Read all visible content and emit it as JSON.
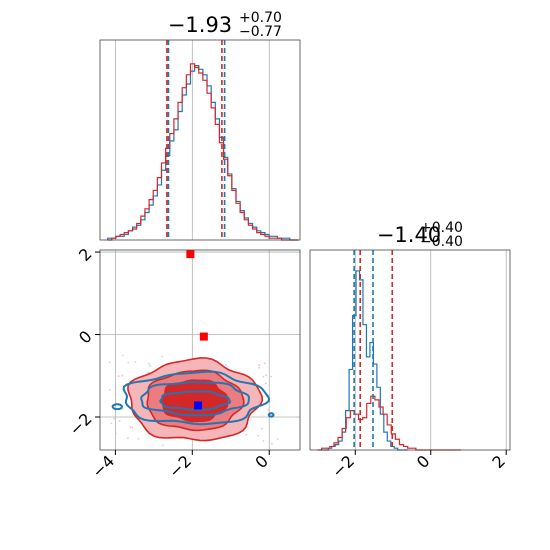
{
  "chart_data": [
    {
      "type": "histogram",
      "panel": "marginal-x",
      "title": {
        "main": "−1.93",
        "sup": "+0.70",
        "sub": "−0.77"
      },
      "xlim": [
        -4.4,
        0.8
      ],
      "colors": {
        "blue": "#1f77b4",
        "red": "#d62728"
      },
      "quantile_lines": {
        "blue": [
          -2.62,
          -1.93,
          -1.16
        ],
        "red": [
          -2.66,
          -1.93,
          -1.23
        ]
      },
      "series": [
        {
          "name": "",
          "color": "blue",
          "values": [
            1,
            1,
            2,
            2,
            3,
            5,
            7,
            8,
            11,
            15,
            19,
            24,
            30,
            38,
            46,
            54,
            60,
            70,
            79,
            85,
            92,
            95,
            93,
            90,
            84,
            75,
            66,
            56,
            45,
            36,
            28,
            21,
            16,
            12,
            9,
            7,
            5,
            4,
            3,
            2,
            2,
            1,
            1,
            1,
            0,
            0
          ]
        },
        {
          "name": "",
          "color": "red",
          "values": [
            0,
            1,
            2,
            3,
            4,
            5,
            6,
            9,
            13,
            17,
            22,
            27,
            34,
            42,
            50,
            58,
            66,
            75,
            83,
            90,
            96,
            94,
            91,
            87,
            80,
            72,
            63,
            53,
            44,
            35,
            27,
            20,
            15,
            11,
            8,
            6,
            4,
            3,
            2,
            1,
            1,
            1,
            0,
            0,
            0,
            0
          ]
        }
      ]
    },
    {
      "type": "histogram",
      "panel": "marginal-y",
      "title": {
        "main": "−1.40",
        "sup": "+0.40",
        "sub": "−0.40"
      },
      "xlim": [
        -3.2,
        2.1
      ],
      "xticks": [
        -2,
        0,
        2
      ],
      "tick_labels": [
        "−2",
        "0",
        "2"
      ],
      "quantile_lines": {
        "blue": [
          -2.03,
          -1.53,
          -1.17
        ],
        "red": [
          -1.87,
          -1.02,
          -1.5
        ]
      },
      "series": [
        {
          "name": "",
          "color": "blue",
          "values": [
            0,
            0,
            1,
            2,
            3,
            5,
            10,
            22,
            45,
            75,
            100,
            95,
            70,
            52,
            60,
            48,
            35,
            20,
            10,
            5,
            2,
            1,
            0,
            0,
            0
          ]
        },
        {
          "name": "",
          "color": "red",
          "values": [
            0,
            1,
            1,
            2,
            4,
            7,
            12,
            18,
            22,
            20,
            17,
            18,
            26,
            30,
            28,
            24,
            20,
            14,
            9,
            6,
            3,
            2,
            1,
            1,
            0,
            0,
            0,
            0,
            0,
            0,
            0,
            0,
            0,
            0,
            0
          ]
        }
      ]
    },
    {
      "type": "contour",
      "panel": "joint",
      "xlim": [
        -4.4,
        0.8
      ],
      "ylim": [
        -2.8,
        2.05
      ],
      "xticks": [
        -4,
        -2,
        0
      ],
      "xtick_labels": [
        "−4",
        "−2",
        "0"
      ],
      "yticks": [
        -2,
        0,
        2
      ],
      "ytick_labels": [
        "−2",
        "0",
        "2"
      ],
      "red_center": [
        -1.95,
        -1.6
      ],
      "blue_center": [
        -1.95,
        -1.55
      ],
      "points": [
        {
          "name": "truth",
          "color": "#0000ff",
          "x": -1.85,
          "y": -1.72
        },
        {
          "name": "outlier",
          "color": "#ff0000",
          "x": -2.05,
          "y": 1.95
        },
        {
          "name": "outlier",
          "color": "#ff0000",
          "x": -1.7,
          "y": -0.05
        }
      ]
    }
  ]
}
